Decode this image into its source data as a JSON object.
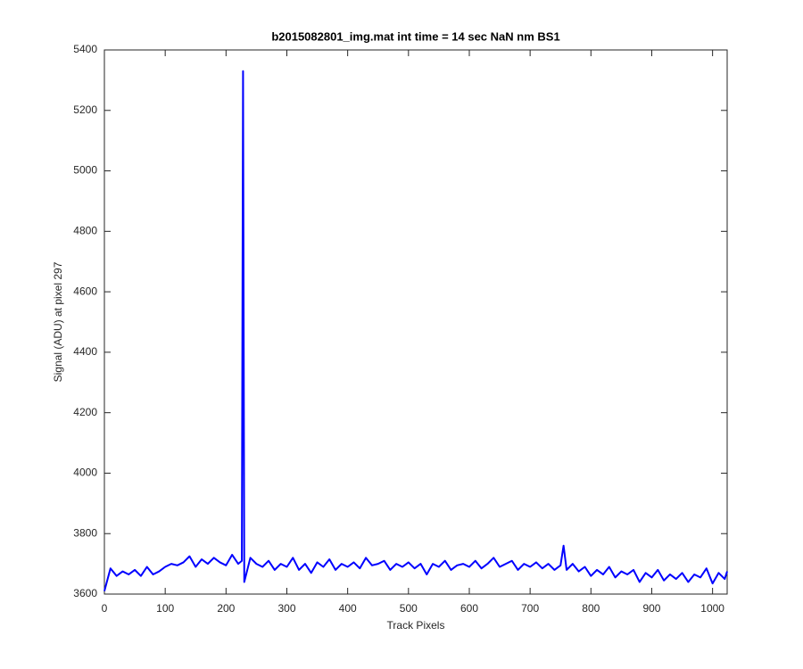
{
  "chart_data": {
    "type": "line",
    "title": "b2015082801_img.mat int time = 14 sec  NaN nm BS1",
    "xlabel": "Track Pixels",
    "ylabel": "Signal (ADU) at pixel 297",
    "x": [
      0,
      10,
      20,
      30,
      40,
      50,
      60,
      70,
      80,
      90,
      100,
      110,
      120,
      130,
      140,
      150,
      160,
      170,
      180,
      190,
      200,
      210,
      220,
      226,
      228,
      230,
      240,
      250,
      260,
      270,
      280,
      290,
      300,
      310,
      320,
      330,
      340,
      350,
      360,
      370,
      380,
      390,
      400,
      410,
      420,
      430,
      440,
      450,
      460,
      470,
      480,
      490,
      500,
      510,
      520,
      530,
      540,
      550,
      560,
      570,
      580,
      590,
      600,
      610,
      620,
      630,
      640,
      650,
      660,
      670,
      680,
      690,
      700,
      710,
      720,
      730,
      740,
      750,
      755,
      760,
      770,
      780,
      790,
      800,
      810,
      820,
      830,
      840,
      850,
      860,
      870,
      880,
      890,
      900,
      910,
      920,
      930,
      940,
      950,
      960,
      970,
      980,
      990,
      1000,
      1010,
      1020,
      1024
    ],
    "series": [
      {
        "color": "#0000ff",
        "values": [
          3610,
          3685,
          3660,
          3675,
          3665,
          3680,
          3660,
          3690,
          3665,
          3675,
          3690,
          3700,
          3695,
          3705,
          3725,
          3690,
          3715,
          3700,
          3720,
          3705,
          3695,
          3730,
          3700,
          3710,
          5330,
          3640,
          3720,
          3700,
          3690,
          3710,
          3680,
          3700,
          3690,
          3720,
          3680,
          3700,
          3670,
          3705,
          3690,
          3715,
          3680,
          3700,
          3690,
          3705,
          3685,
          3720,
          3695,
          3700,
          3710,
          3680,
          3700,
          3690,
          3705,
          3685,
          3700,
          3665,
          3700,
          3690,
          3710,
          3680,
          3695,
          3700,
          3690,
          3710,
          3685,
          3700,
          3720,
          3690,
          3700,
          3710,
          3680,
          3700,
          3690,
          3705,
          3685,
          3700,
          3680,
          3695,
          3760,
          3680,
          3700,
          3675,
          3690,
          3660,
          3680,
          3665,
          3690,
          3655,
          3675,
          3665,
          3680,
          3640,
          3670,
          3655,
          3680,
          3645,
          3665,
          3650,
          3670,
          3640,
          3665,
          3655,
          3685,
          3635,
          3670,
          3650,
          3675
        ]
      }
    ],
    "xlim": [
      0,
      1024
    ],
    "ylim": [
      3600,
      5400
    ],
    "xticks": [
      0,
      100,
      200,
      300,
      400,
      500,
      600,
      700,
      800,
      900,
      1000
    ],
    "yticks": [
      3600,
      3800,
      4000,
      4200,
      4400,
      4600,
      4800,
      5000,
      5200,
      5400
    ]
  }
}
